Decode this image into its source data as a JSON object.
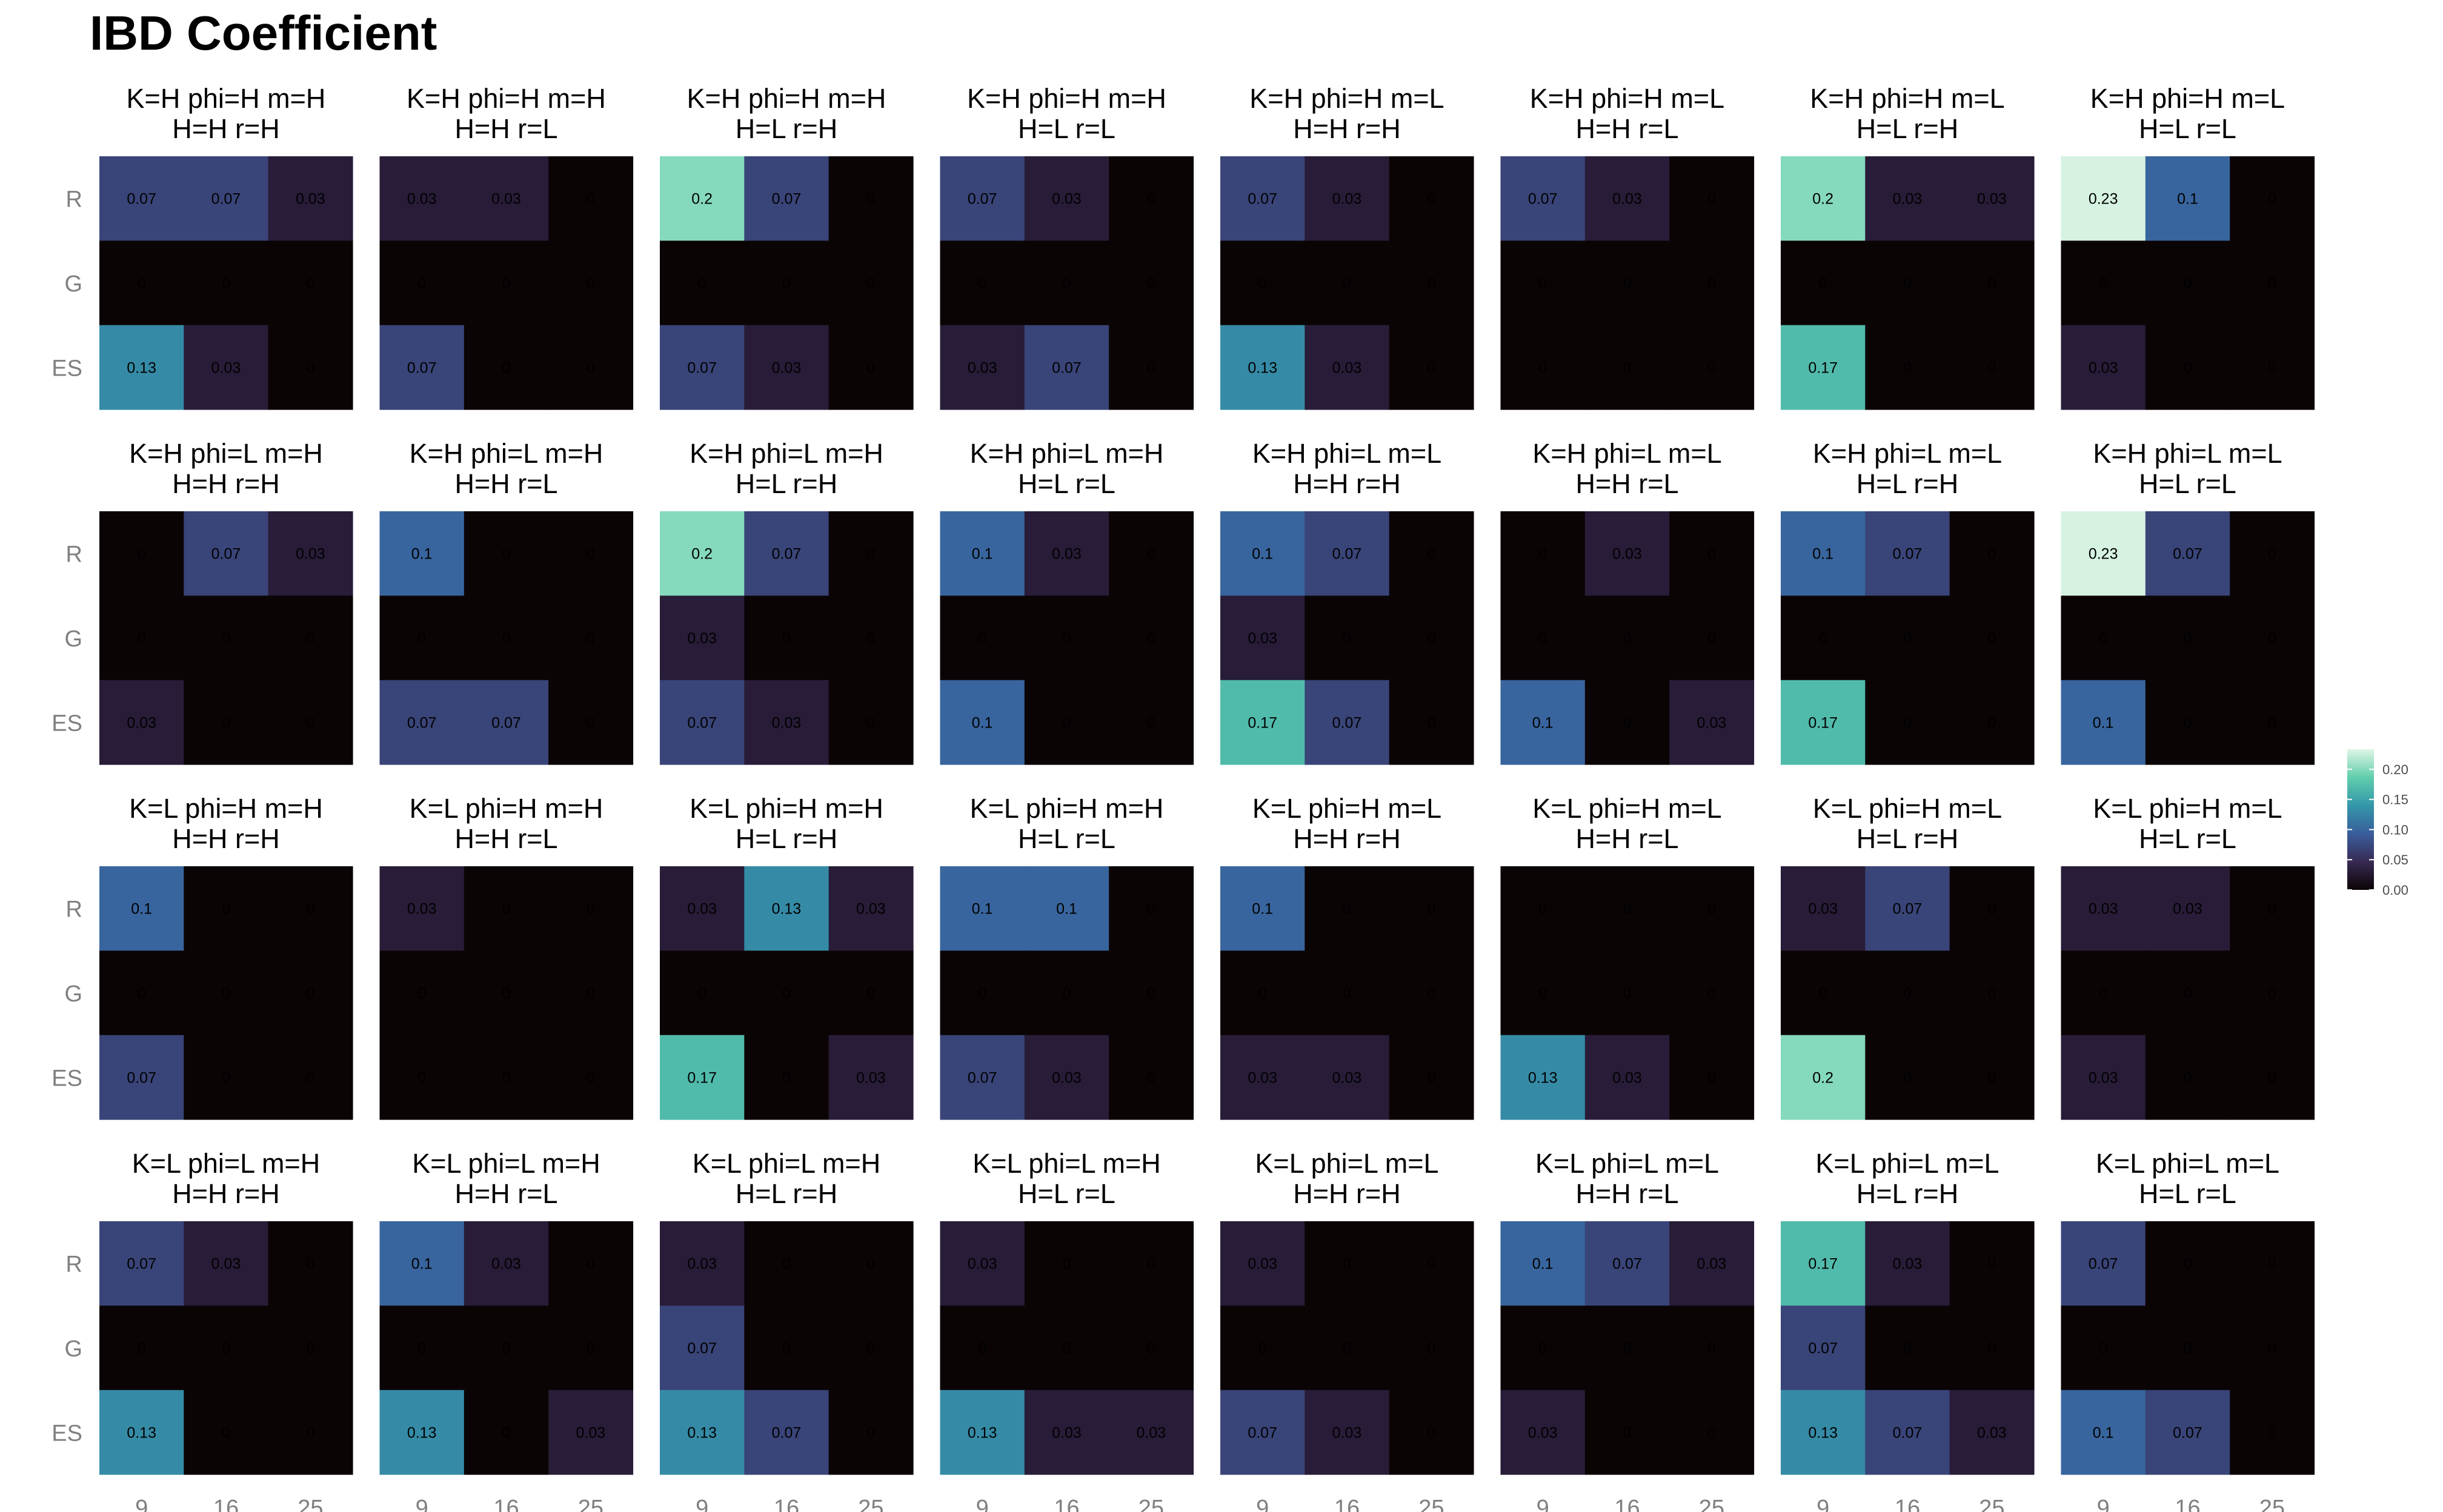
{
  "chart_data": {
    "type": "heatmap",
    "title": "IBD Coefficient",
    "x_categories": [
      "9",
      "16",
      "25"
    ],
    "y_categories": [
      "R",
      "G",
      "ES"
    ],
    "legend": {
      "position": "right",
      "ticks": [
        "0.20",
        "0.15",
        "0.10",
        "0.05",
        "0.00"
      ],
      "tick_values": [
        0.2,
        0.15,
        0.1,
        0.05,
        0.0
      ],
      "range": [
        0,
        0.233
      ],
      "colors": [
        "#0b0405",
        "#382a54",
        "#395d9c",
        "#3497a9",
        "#60ceac",
        "#def5e5"
      ]
    },
    "panels": [
      {
        "title1": "K=H phi=H m=H",
        "title2": "H=H r=H",
        "values": [
          [
            0.07,
            0.07,
            0.03
          ],
          [
            0,
            0,
            0
          ],
          [
            0.13,
            0.03,
            0
          ]
        ]
      },
      {
        "title1": "K=H phi=H m=H",
        "title2": "H=H r=L",
        "values": [
          [
            0.03,
            0.03,
            0
          ],
          [
            0,
            0,
            0
          ],
          [
            0.07,
            0,
            0
          ]
        ]
      },
      {
        "title1": "K=H phi=H m=H",
        "title2": "H=L r=H",
        "values": [
          [
            0.2,
            0.07,
            0
          ],
          [
            0,
            0,
            0
          ],
          [
            0.07,
            0.03,
            0
          ]
        ]
      },
      {
        "title1": "K=H phi=H m=H",
        "title2": "H=L r=L",
        "values": [
          [
            0.07,
            0.03,
            0
          ],
          [
            0,
            0,
            0
          ],
          [
            0.03,
            0.07,
            0
          ]
        ]
      },
      {
        "title1": "K=H phi=H m=L",
        "title2": "H=H r=H",
        "values": [
          [
            0.07,
            0.03,
            0
          ],
          [
            0,
            0,
            0
          ],
          [
            0.13,
            0.03,
            0
          ]
        ]
      },
      {
        "title1": "K=H phi=H m=L",
        "title2": "H=H r=L",
        "values": [
          [
            0.07,
            0.03,
            0
          ],
          [
            0,
            0,
            0
          ],
          [
            0,
            0,
            0
          ]
        ]
      },
      {
        "title1": "K=H phi=H m=L",
        "title2": "H=L r=H",
        "values": [
          [
            0.2,
            0.03,
            0.03
          ],
          [
            0,
            0,
            0
          ],
          [
            0.17,
            0,
            0
          ]
        ]
      },
      {
        "title1": "K=H phi=H m=L",
        "title2": "H=L r=L",
        "values": [
          [
            0.23,
            0.1,
            0
          ],
          [
            0,
            0,
            0
          ],
          [
            0.03,
            0,
            0
          ]
        ]
      },
      {
        "title1": "K=H phi=L m=H",
        "title2": "H=H r=H",
        "values": [
          [
            0,
            0.07,
            0.03
          ],
          [
            0,
            0,
            0
          ],
          [
            0.03,
            0,
            0
          ]
        ]
      },
      {
        "title1": "K=H phi=L m=H",
        "title2": "H=H r=L",
        "values": [
          [
            0.1,
            0,
            0
          ],
          [
            0,
            0,
            0
          ],
          [
            0.07,
            0.07,
            0
          ]
        ]
      },
      {
        "title1": "K=H phi=L m=H",
        "title2": "H=L r=H",
        "values": [
          [
            0.2,
            0.07,
            0
          ],
          [
            0.03,
            0,
            0
          ],
          [
            0.07,
            0.03,
            0
          ]
        ]
      },
      {
        "title1": "K=H phi=L m=H",
        "title2": "H=L r=L",
        "values": [
          [
            0.1,
            0.03,
            0
          ],
          [
            0,
            0,
            0
          ],
          [
            0.1,
            0,
            0
          ]
        ]
      },
      {
        "title1": "K=H phi=L m=L",
        "title2": "H=H r=H",
        "values": [
          [
            0.1,
            0.07,
            0
          ],
          [
            0.03,
            0,
            0
          ],
          [
            0.17,
            0.07,
            0
          ]
        ]
      },
      {
        "title1": "K=H phi=L m=L",
        "title2": "H=H r=L",
        "values": [
          [
            0,
            0.03,
            0
          ],
          [
            0,
            0,
            0
          ],
          [
            0.1,
            0,
            0.03
          ]
        ]
      },
      {
        "title1": "K=H phi=L m=L",
        "title2": "H=L r=H",
        "values": [
          [
            0.1,
            0.07,
            0
          ],
          [
            0,
            0,
            0
          ],
          [
            0.17,
            0,
            0
          ]
        ]
      },
      {
        "title1": "K=H phi=L m=L",
        "title2": "H=L r=L",
        "values": [
          [
            0.23,
            0.07,
            0
          ],
          [
            0,
            0,
            0
          ],
          [
            0.1,
            0,
            0
          ]
        ]
      },
      {
        "title1": "K=L phi=H m=H",
        "title2": "H=H r=H",
        "values": [
          [
            0.1,
            0,
            0
          ],
          [
            0,
            0,
            0
          ],
          [
            0.07,
            0,
            0
          ]
        ]
      },
      {
        "title1": "K=L phi=H m=H",
        "title2": "H=H r=L",
        "values": [
          [
            0.03,
            0,
            0
          ],
          [
            0,
            0,
            0
          ],
          [
            0,
            0,
            0
          ]
        ]
      },
      {
        "title1": "K=L phi=H m=H",
        "title2": "H=L r=H",
        "values": [
          [
            0.03,
            0.13,
            0.03
          ],
          [
            0,
            0,
            0
          ],
          [
            0.17,
            0,
            0.03
          ]
        ]
      },
      {
        "title1": "K=L phi=H m=H",
        "title2": "H=L r=L",
        "values": [
          [
            0.1,
            0.1,
            0
          ],
          [
            0,
            0,
            0
          ],
          [
            0.07,
            0.03,
            0
          ]
        ]
      },
      {
        "title1": "K=L phi=H m=L",
        "title2": "H=H r=H",
        "values": [
          [
            0.1,
            0,
            0
          ],
          [
            0,
            0,
            0
          ],
          [
            0.03,
            0.03,
            0
          ]
        ]
      },
      {
        "title1": "K=L phi=H m=L",
        "title2": "H=H r=L",
        "values": [
          [
            0,
            0,
            0
          ],
          [
            0,
            0,
            0
          ],
          [
            0.13,
            0.03,
            0
          ]
        ]
      },
      {
        "title1": "K=L phi=H m=L",
        "title2": "H=L r=H",
        "values": [
          [
            0.03,
            0.07,
            0
          ],
          [
            0,
            0,
            0
          ],
          [
            0.2,
            0,
            0
          ]
        ]
      },
      {
        "title1": "K=L phi=H m=L",
        "title2": "H=L r=L",
        "values": [
          [
            0.03,
            0.03,
            0
          ],
          [
            0,
            0,
            0
          ],
          [
            0.03,
            0,
            0
          ]
        ]
      },
      {
        "title1": "K=L phi=L m=H",
        "title2": "H=H r=H",
        "values": [
          [
            0.07,
            0.03,
            0
          ],
          [
            0,
            0,
            0
          ],
          [
            0.13,
            0,
            0
          ]
        ]
      },
      {
        "title1": "K=L phi=L m=H",
        "title2": "H=H r=L",
        "values": [
          [
            0.1,
            0.03,
            0
          ],
          [
            0,
            0,
            0
          ],
          [
            0.13,
            0,
            0.03
          ]
        ]
      },
      {
        "title1": "K=L phi=L m=H",
        "title2": "H=L r=H",
        "values": [
          [
            0.03,
            0,
            0
          ],
          [
            0.07,
            0,
            0
          ],
          [
            0.13,
            0.07,
            0
          ]
        ]
      },
      {
        "title1": "K=L phi=L m=H",
        "title2": "H=L r=L",
        "values": [
          [
            0.03,
            0,
            0
          ],
          [
            0,
            0,
            0
          ],
          [
            0.13,
            0.03,
            0.03
          ]
        ]
      },
      {
        "title1": "K=L phi=L m=L",
        "title2": "H=H r=H",
        "values": [
          [
            0.03,
            0,
            0
          ],
          [
            0,
            0,
            0
          ],
          [
            0.07,
            0.03,
            0
          ]
        ]
      },
      {
        "title1": "K=L phi=L m=L",
        "title2": "H=H r=L",
        "values": [
          [
            0.1,
            0.07,
            0.03
          ],
          [
            0,
            0,
            0
          ],
          [
            0.03,
            0,
            0
          ]
        ]
      },
      {
        "title1": "K=L phi=L m=L",
        "title2": "H=L r=H",
        "values": [
          [
            0.17,
            0.03,
            0
          ],
          [
            0.07,
            0,
            0
          ],
          [
            0.13,
            0.07,
            0.03
          ]
        ]
      },
      {
        "title1": "K=L phi=L m=L",
        "title2": "H=L r=L",
        "values": [
          [
            0.07,
            0,
            0
          ],
          [
            0,
            0,
            0
          ],
          [
            0.1,
            0.07,
            0
          ]
        ]
      }
    ]
  }
}
